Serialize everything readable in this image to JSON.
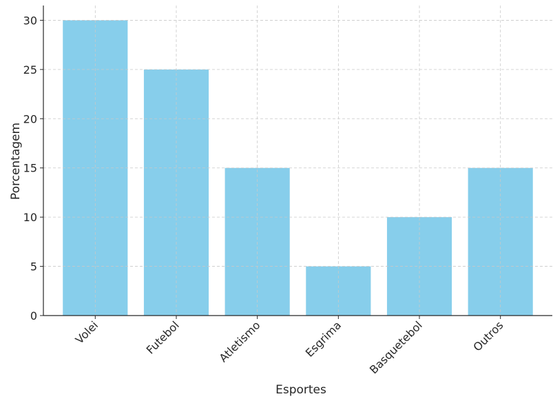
{
  "chart_data": {
    "type": "bar",
    "title": "",
    "xlabel": "Esportes",
    "ylabel": "Porcentagem",
    "categories": [
      "Volei",
      "Futebol",
      "Atletismo",
      "Esgrima",
      "Basquetebol",
      "Outros"
    ],
    "values": [
      30,
      25,
      15,
      5,
      10,
      15
    ],
    "ylim": [
      0,
      31.5
    ],
    "yticks": [
      0,
      5,
      10,
      15,
      20,
      25,
      30
    ],
    "bar_color": "#87ceeb",
    "grid": true,
    "grid_color": "#c8c8c8",
    "axis_color": "#262626"
  }
}
